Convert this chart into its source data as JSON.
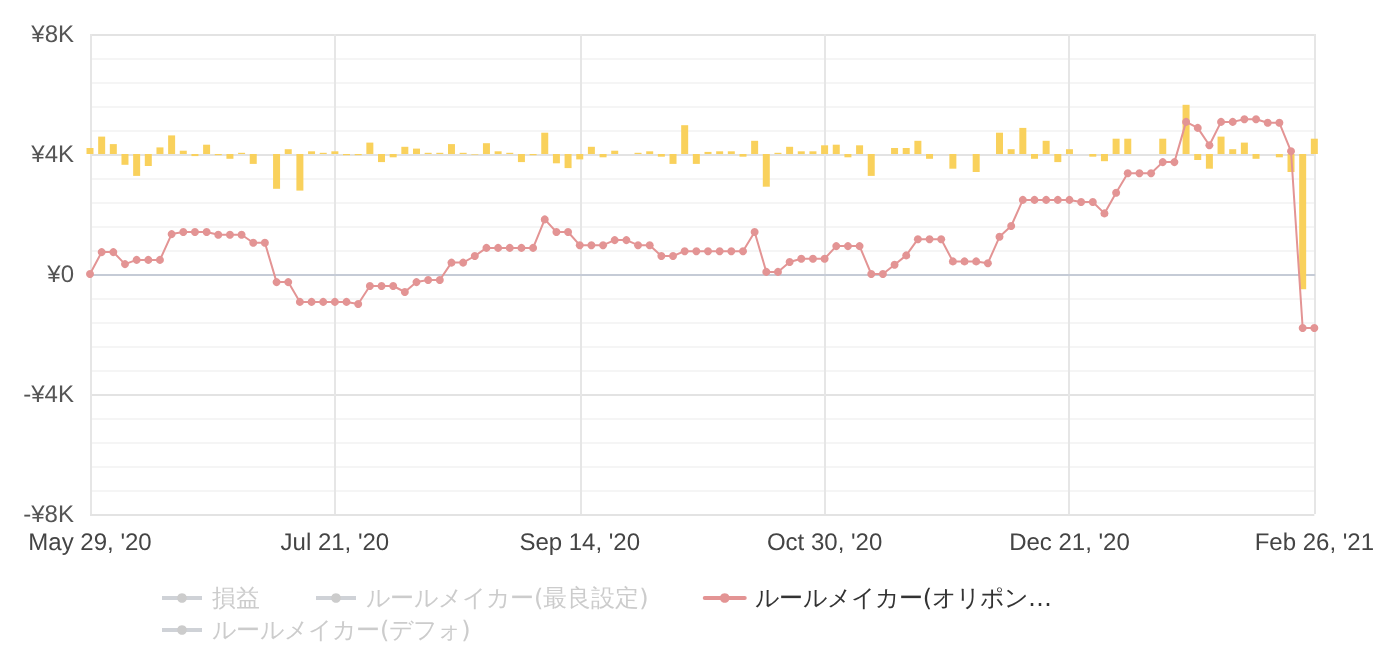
{
  "chart_data": {
    "type": "line",
    "categories": [
      "May 29, '20",
      null,
      null,
      null,
      null,
      null,
      null,
      null,
      null,
      null,
      null,
      null,
      null,
      null,
      null,
      null,
      null,
      null,
      null,
      null,
      null,
      "Jul 21, '20",
      null,
      null,
      null,
      null,
      null,
      null,
      null,
      null,
      null,
      null,
      null,
      null,
      null,
      null,
      null,
      null,
      null,
      null,
      null,
      null,
      "Sep 14, '20",
      null,
      null,
      null,
      null,
      null,
      null,
      null,
      null,
      null,
      null,
      null,
      null,
      null,
      null,
      null,
      null,
      null,
      null,
      null,
      null,
      "Oct 30, '20",
      null,
      null,
      null,
      null,
      null,
      null,
      null,
      null,
      null,
      null,
      null,
      null,
      null,
      null,
      null,
      null,
      null,
      null,
      null,
      null,
      "Dec 21, '20",
      null,
      null,
      null,
      null,
      null,
      null,
      null,
      null,
      null,
      null,
      null,
      null,
      null,
      null,
      null,
      null,
      null,
      null,
      null,
      null,
      "Feb 26, '21"
    ],
    "series": [
      {
        "type": "bar",
        "color": "#f9d15c",
        "base": [
          4000,
          4000,
          4000,
          4000,
          4000,
          4000,
          4000,
          4000,
          4000,
          4000,
          4000,
          4000,
          4000,
          4000,
          4000,
          null,
          4000,
          4000,
          4000,
          4000,
          4000,
          4000,
          4000,
          4000,
          4000,
          4000,
          4000,
          4000,
          4000,
          4000,
          4000,
          4000,
          4000,
          4000,
          4000,
          4000,
          4000,
          4000,
          4000,
          4000,
          4000,
          4000,
          4000,
          4000,
          4000,
          4000,
          null,
          4000,
          4000,
          4000,
          4000,
          4000,
          4000,
          4000,
          4000,
          4000,
          4000,
          4000,
          4000,
          4000,
          4000,
          4000,
          4000,
          4000,
          4000,
          4000,
          4000,
          4000,
          null,
          4000,
          4000,
          4000,
          4000,
          null,
          4000,
          null,
          4000,
          null,
          4000,
          4000,
          4000,
          4000,
          4000,
          4000,
          4000,
          null,
          4000,
          4000,
          4000,
          4000,
          null,
          null,
          4000,
          null,
          4000,
          4000,
          4000,
          4000,
          4000,
          4000,
          4000,
          null,
          4000,
          4000,
          4000,
          4000
        ],
        "values": [
          200,
          580,
          330,
          -360,
          -730,
          -400,
          220,
          620,
          110,
          -70,
          310,
          -40,
          -160,
          40,
          -330,
          null,
          -1160,
          160,
          -1220,
          90,
          40,
          90,
          -40,
          -40,
          380,
          -270,
          -110,
          240,
          180,
          40,
          40,
          330,
          40,
          -20,
          360,
          90,
          40,
          -270,
          -40,
          710,
          -310,
          -470,
          -180,
          240,
          -110,
          110,
          null,
          40,
          90,
          -90,
          -330,
          960,
          -330,
          70,
          90,
          90,
          -90,
          440,
          -1090,
          40,
          240,
          90,
          90,
          290,
          310,
          -110,
          290,
          -730,
          null,
          200,
          200,
          440,
          -160,
          null,
          -490,
          null,
          -600,
          null,
          710,
          160,
          870,
          -160,
          440,
          -270,
          160,
          null,
          -90,
          -240,
          510,
          510,
          null,
          null,
          510,
          null,
          1640,
          -200,
          -490,
          580,
          160,
          380,
          -160,
          null,
          -110,
          -600,
          -4510,
          510
        ]
      },
      {
        "name": "損益",
        "color": "#cccccc",
        "values": [
          null,
          null,
          null,
          null,
          null,
          null,
          null,
          null,
          null,
          null,
          null,
          null,
          null,
          null,
          null,
          null,
          null,
          null,
          null,
          null,
          null,
          null,
          null,
          null,
          null,
          null,
          null,
          null,
          null,
          null,
          null,
          null,
          null,
          null,
          null,
          null,
          null,
          null,
          null,
          null,
          null,
          null,
          null,
          null,
          null,
          null,
          null,
          null,
          null,
          null,
          null,
          null,
          null,
          null,
          null,
          null,
          null,
          null,
          null,
          null,
          null,
          null,
          null,
          null,
          null,
          null,
          null,
          null,
          null,
          null,
          null,
          null,
          null,
          null,
          null,
          null,
          null,
          null,
          null,
          null,
          null,
          null,
          null,
          null,
          null,
          null,
          null,
          null,
          null,
          null,
          null,
          null,
          null,
          null,
          null,
          null,
          null,
          null,
          null,
          null,
          null,
          null,
          null,
          null,
          null,
          null
        ]
      },
      {
        "name": "ルールメイカー(最良設定)",
        "color": "#cccccc",
        "values": [
          null,
          null,
          null,
          null,
          null,
          null,
          null,
          null,
          null,
          null,
          null,
          null,
          null,
          null,
          null,
          null,
          null,
          null,
          null,
          null,
          null,
          null,
          null,
          null,
          null,
          null,
          null,
          null,
          null,
          null,
          null,
          null,
          null,
          null,
          null,
          null,
          null,
          null,
          null,
          null,
          null,
          null,
          null,
          null,
          null,
          null,
          null,
          null,
          null,
          null,
          null,
          null,
          null,
          null,
          null,
          null,
          null,
          null,
          null,
          null,
          null,
          null,
          null,
          null,
          null,
          null,
          null,
          null,
          null,
          null,
          null,
          null,
          null,
          null,
          null,
          null,
          null,
          null,
          null,
          null,
          null,
          null,
          null,
          null,
          null,
          null,
          null,
          null,
          null,
          null,
          null,
          null,
          null,
          null,
          null,
          null,
          null,
          null,
          null,
          null,
          null,
          null,
          null,
          null,
          null,
          null
        ]
      },
      {
        "name": "ルールメイカー(オリポン…",
        "color": "#e39494",
        "values": [
          0,
          730,
          730,
          330,
          470,
          470,
          470,
          1330,
          1400,
          1400,
          1400,
          1310,
          1310,
          1310,
          1040,
          1040,
          -270,
          -270,
          -930,
          -930,
          -930,
          -930,
          -930,
          -1000,
          -400,
          -400,
          -400,
          -600,
          -270,
          -200,
          -200,
          380,
          380,
          600,
          870,
          870,
          870,
          870,
          870,
          1820,
          1400,
          1400,
          960,
          960,
          960,
          1130,
          1130,
          960,
          960,
          600,
          600,
          760,
          760,
          760,
          760,
          760,
          760,
          1400,
          70,
          70,
          400,
          510,
          510,
          510,
          930,
          930,
          930,
          0,
          0,
          310,
          620,
          1160,
          1160,
          1160,
          420,
          420,
          420,
          360,
          1240,
          1600,
          2470,
          2470,
          2470,
          2470,
          2470,
          2400,
          2400,
          2020,
          2710,
          3360,
          3360,
          3360,
          3730,
          3730,
          5070,
          4870,
          4290,
          5070,
          5070,
          5160,
          5160,
          5040,
          5040,
          4090,
          -1800,
          -1800
        ]
      },
      {
        "name": "ルールメイカー(デフォ)",
        "color": "#cccccc",
        "values": [
          null,
          null,
          null,
          null,
          null,
          null,
          null,
          null,
          null,
          null,
          null,
          null,
          null,
          null,
          null,
          null,
          null,
          null,
          null,
          null,
          null,
          null,
          null,
          null,
          null,
          null,
          null,
          null,
          null,
          null,
          null,
          null,
          null,
          null,
          null,
          null,
          null,
          null,
          null,
          null,
          null,
          null,
          null,
          null,
          null,
          null,
          null,
          null,
          null,
          null,
          null,
          null,
          null,
          null,
          null,
          null,
          null,
          null,
          null,
          null,
          null,
          null,
          null,
          null,
          null,
          null,
          null,
          null,
          null,
          null,
          null,
          null,
          null,
          null,
          null,
          null,
          null,
          null,
          null,
          null,
          null,
          null,
          null,
          null,
          null,
          null,
          null,
          null,
          null,
          null,
          null,
          null,
          null,
          null,
          null,
          null,
          null,
          null,
          null,
          null,
          null,
          null,
          null,
          null,
          null,
          null
        ]
      }
    ],
    "ylim": [
      -8000,
      8000
    ],
    "yticks": [
      {
        "value": -8000,
        "label": "-¥8K"
      },
      {
        "value": -4000,
        "label": "-¥4K"
      },
      {
        "value": 0,
        "label": "¥0"
      },
      {
        "value": 4000,
        "label": "¥4K"
      },
      {
        "value": 8000,
        "label": "¥8K"
      }
    ],
    "grid": true,
    "legend": "bottom",
    "marker": "circle",
    "line_style": "solid"
  }
}
